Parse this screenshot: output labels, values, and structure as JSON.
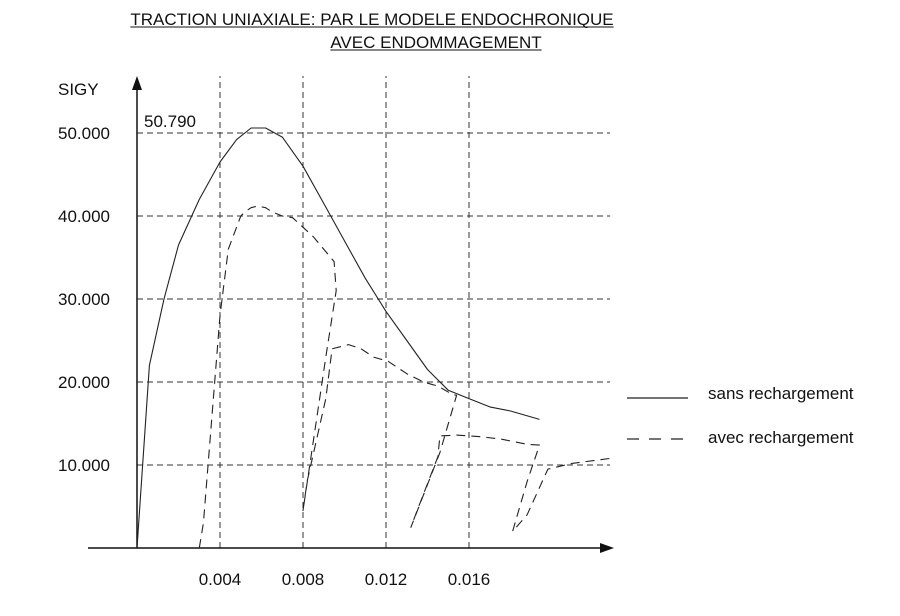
{
  "chart_data": {
    "type": "line",
    "title": "TRACTION UNIAXIALE: PAR LE MODELE ENDOCHRONIQUE",
    "subtitle": "AVEC ENDOMMAGEMENT",
    "ylabel": "SIGY",
    "xlabel": "",
    "x_ticks": [
      0.004,
      0.008,
      0.012,
      0.016
    ],
    "x_tick_labels": [
      "0.004",
      "0.008",
      "0.012",
      "0.016"
    ],
    "y_ticks": [
      10,
      20,
      30,
      40,
      50
    ],
    "y_tick_labels": [
      "10.000",
      "20.000",
      "30.000",
      "40.000",
      "50.000"
    ],
    "xlim": [
      0,
      0.0228
    ],
    "ylim": [
      0,
      52.5
    ],
    "grid": true,
    "legend_position": "right",
    "annotation": "50.790",
    "series": [
      {
        "name": "sans rechargement",
        "style": "solid",
        "x": [
          0,
          0.0006,
          0.0013,
          0.002,
          0.003,
          0.004,
          0.0048,
          0.0055,
          0.0062,
          0.007,
          0.008,
          0.009,
          0.01,
          0.011,
          0.012,
          0.013,
          0.014,
          0.015,
          0.016,
          0.017,
          0.018,
          0.0194
        ],
        "y": [
          0,
          22,
          30,
          36.5,
          42,
          46.5,
          49.2,
          50.6,
          50.6,
          49.5,
          46,
          41.5,
          37,
          32.5,
          28.5,
          25,
          21.5,
          19,
          18,
          17,
          16.5,
          15.5
        ]
      },
      {
        "name": "avec rechargement",
        "style": "dashed",
        "x": [
          0.003,
          0.0032,
          0.004,
          0.0044,
          0.005,
          0.0052,
          0.0055,
          0.0058,
          0.0062,
          0.0065,
          0.007,
          0.0075,
          0.0085,
          0.0095,
          0.0096,
          0.0091,
          0.008,
          0.0082,
          0.0091,
          0.0094,
          0.0102,
          0.0108,
          0.0114,
          0.0121,
          0.013,
          0.0138,
          0.0145,
          0.0152,
          0.0154,
          0.0146,
          0.0132,
          0.0135,
          0.0145,
          0.0146,
          0.0154,
          0.0166,
          0.0176,
          0.0188,
          0.0194,
          0.0188,
          0.0181,
          0.0188,
          0.0198,
          0.021,
          0.0228
        ],
        "y": [
          0,
          3,
          28,
          36,
          40,
          40.5,
          41,
          41.2,
          41,
          40.5,
          40,
          39.8,
          37.5,
          34.5,
          31,
          23,
          4.5,
          8,
          18,
          24,
          24.5,
          24,
          23,
          22.5,
          21,
          20,
          19.5,
          18.5,
          18.4,
          11.5,
          2.5,
          4.5,
          11,
          13.5,
          13.6,
          13.4,
          13.1,
          12.5,
          12.4,
          8,
          2,
          4,
          9.5,
          10.2,
          10.8
        ]
      }
    ]
  }
}
